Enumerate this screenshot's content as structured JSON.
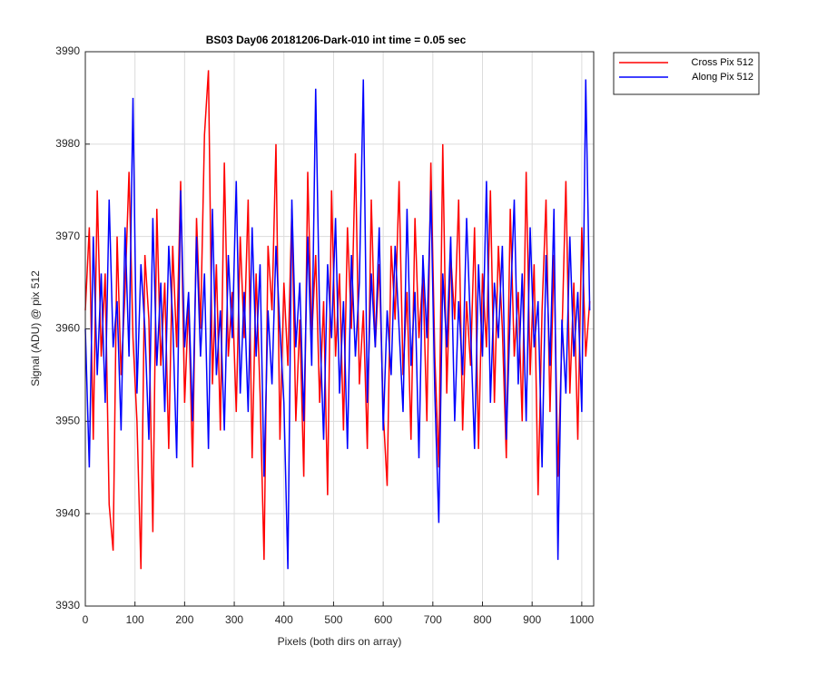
{
  "chart_data": {
    "type": "line",
    "title": "BS03 Day06 20181206-Dark-010 int time = 0.05 sec",
    "xlabel": "Pixels (both dirs on array)",
    "ylabel": "Signal (ADU) @ pix 512",
    "x": [
      0,
      8,
      16,
      24,
      32,
      40,
      48,
      56,
      64,
      72,
      80,
      88,
      96,
      104,
      112,
      120,
      128,
      136,
      144,
      152,
      160,
      168,
      176,
      184,
      192,
      200,
      208,
      216,
      224,
      232,
      240,
      248,
      256,
      264,
      272,
      280,
      288,
      296,
      304,
      312,
      320,
      328,
      336,
      344,
      352,
      360,
      368,
      376,
      384,
      392,
      400,
      408,
      416,
      424,
      432,
      440,
      448,
      456,
      464,
      472,
      480,
      488,
      496,
      504,
      512,
      520,
      528,
      536,
      544,
      552,
      560,
      568,
      576,
      584,
      592,
      600,
      608,
      616,
      624,
      632,
      640,
      648,
      656,
      664,
      672,
      680,
      688,
      696,
      704,
      712,
      720,
      728,
      736,
      744,
      752,
      760,
      768,
      776,
      784,
      792,
      800,
      808,
      816,
      824,
      832,
      840,
      848,
      856,
      864,
      872,
      880,
      888,
      896,
      904,
      912,
      920,
      928,
      936,
      944,
      952,
      960,
      968,
      976,
      984,
      992,
      1000,
      1008,
      1016
    ],
    "series": [
      {
        "name": "Cross Pix 512",
        "color": "#ff0000",
        "values": [
          3962,
          3971,
          3948,
          3975,
          3957,
          3966,
          3941,
          3936,
          3970,
          3955,
          3964,
          3977,
          3959,
          3950,
          3934,
          3968,
          3961,
          3938,
          3973,
          3956,
          3965,
          3947,
          3969,
          3958,
          3976,
          3952,
          3963,
          3945,
          3972,
          3960,
          3981,
          3988,
          3954,
          3967,
          3949,
          3978,
          3957,
          3964,
          3951,
          3970,
          3959,
          3974,
          3946,
          3966,
          3953,
          3935,
          3969,
          3962,
          3980,
          3948,
          3965,
          3956,
          3973,
          3950,
          3961,
          3944,
          3977,
          3959,
          3968,
          3952,
          3963,
          3942,
          3975,
          3957,
          3966,
          3949,
          3971,
          3960,
          3979,
          3954,
          3962,
          3947,
          3974,
          3958,
          3967,
          3951,
          3943,
          3969,
          3961,
          3976,
          3955,
          3964,
          3948,
          3972,
          3959,
          3966,
          3950,
          3978,
          3957,
          3945,
          3980,
          3953,
          3968,
          3961,
          3974,
          3949,
          3963,
          3956,
          3971,
          3947,
          3966,
          3958,
          3975,
          3952,
          3969,
          3960,
          3946,
          3973,
          3957,
          3964,
          3950,
          3977,
          3955,
          3967,
          3942,
          3962,
          3974,
          3951,
          3968,
          3944,
          3959,
          3976,
          3953,
          3965,
          3948,
          3971,
          3957,
          3963
        ]
      },
      {
        "name": "Along Pix 512",
        "color": "#0000ff",
        "values": [
          3960,
          3945,
          3970,
          3955,
          3966,
          3952,
          3974,
          3958,
          3963,
          3949,
          3971,
          3957,
          3985,
          3953,
          3967,
          3960,
          3948,
          3972,
          3956,
          3965,
          3951,
          3969,
          3961,
          3946,
          3975,
          3958,
          3964,
          3950,
          3970,
          3957,
          3966,
          3947,
          3973,
          3955,
          3962,
          3949,
          3968,
          3959,
          3976,
          3953,
          3964,
          3951,
          3971,
          3957,
          3967,
          3944,
          3962,
          3954,
          3969,
          3960,
          3952,
          3934,
          3974,
          3958,
          3965,
          3950,
          3970,
          3956,
          3986,
          3961,
          3948,
          3967,
          3959,
          3972,
          3953,
          3963,
          3947,
          3968,
          3957,
          3965,
          3987,
          3952,
          3966,
          3958,
          3971,
          3949,
          3962,
          3955,
          3969,
          3960,
          3951,
          3973,
          3956,
          3964,
          3946,
          3968,
          3959,
          3975,
          3953,
          3939,
          3966,
          3958,
          3970,
          3950,
          3963,
          3955,
          3972,
          3960,
          3947,
          3967,
          3957,
          3976,
          3952,
          3965,
          3959,
          3969,
          3948,
          3962,
          3974,
          3954,
          3966,
          3950,
          3971,
          3958,
          3963,
          3945,
          3968,
          3956,
          3973,
          3935,
          3961,
          3953,
          3970,
          3957,
          3964,
          3951,
          3987,
          3962
        ]
      }
    ],
    "xlim": [
      0,
      1024
    ],
    "xticks": [
      0,
      100,
      200,
      300,
      400,
      500,
      600,
      700,
      800,
      900,
      1000
    ],
    "ylim": [
      3930,
      3990
    ],
    "yticks": [
      3930,
      3940,
      3950,
      3960,
      3970,
      3980,
      3990
    ],
    "grid": true,
    "legend": "northeastoutside"
  }
}
